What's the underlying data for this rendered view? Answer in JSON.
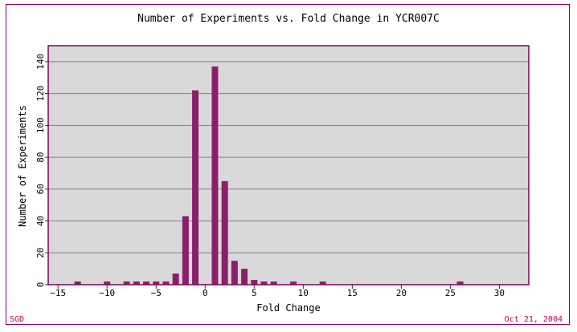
{
  "chart_data": {
    "type": "bar",
    "title": "Number of Experiments vs. Fold Change in YCR007C",
    "xlabel": "Fold Change",
    "ylabel": "Number of Experiments",
    "xlim": [
      -16,
      33
    ],
    "ylim": [
      0,
      150
    ],
    "x_ticks": [
      -15,
      -10,
      -5,
      0,
      5,
      10,
      15,
      20,
      25,
      30
    ],
    "y_ticks": [
      0,
      20,
      40,
      60,
      80,
      100,
      120,
      140
    ],
    "grid": "horizontal",
    "x": [
      -13,
      -10,
      -8,
      -7,
      -6,
      -5,
      -4,
      -3,
      -2,
      -1,
      1,
      2,
      3,
      4,
      5,
      6,
      7,
      9,
      12,
      26
    ],
    "values": [
      2,
      2,
      2,
      2,
      2,
      2,
      2,
      7,
      43,
      122,
      137,
      65,
      15,
      10,
      3,
      2,
      2,
      2,
      2,
      2
    ]
  },
  "footer": {
    "source": "SGD",
    "date": "Oct 21, 2004"
  },
  "colors": {
    "bar": "#8b1f6a",
    "plot_background": "#d9d9d9",
    "axis": "#800060",
    "grid": "#808080",
    "footer_text": "#c00060"
  }
}
